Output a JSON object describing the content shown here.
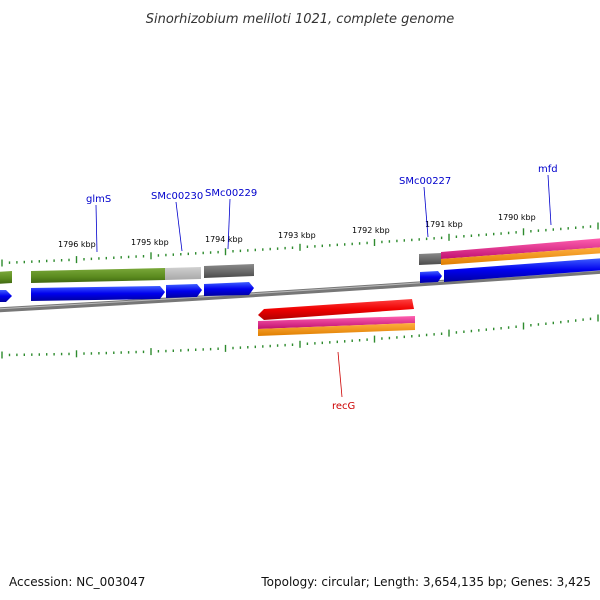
{
  "title": "Sinorhizobium meliloti 1021, complete genome",
  "footer": {
    "accession": "Accession: NC_003047",
    "summary": "Topology: circular; Length: 3,654,135 bp; Genes: 3,425"
  },
  "ruler": {
    "labels": [
      "1796 kbp",
      "1795 kbp",
      "1794 kbp",
      "1793 kbp",
      "1792 kbp",
      "1791 kbp",
      "1790 kbp"
    ]
  },
  "gene_labels": [
    {
      "id": "glmS",
      "text": "glmS",
      "color": "#0000cc"
    },
    {
      "id": "SMc00230",
      "text": "SMc00230",
      "color": "#0000cc"
    },
    {
      "id": "SMc00229",
      "text": "SMc00229",
      "color": "#0000cc"
    },
    {
      "id": "SMc00227",
      "text": "SMc00227",
      "color": "#0000cc"
    },
    {
      "id": "mfd",
      "text": "mfd",
      "color": "#0000cc"
    },
    {
      "id": "recG",
      "text": "recG",
      "color": "#cc0000"
    }
  ],
  "colors": {
    "backbone": "#888888",
    "gene": "#0000ee",
    "green_feature": "#5a8a1e",
    "grey_feature": "#666666",
    "light_grey_feature": "#bbbbbb",
    "red_feature": "#ee0000",
    "magenta_feature": "#e0208a",
    "orange_feature": "#f5960a",
    "ticks": "#2e8b2e"
  }
}
